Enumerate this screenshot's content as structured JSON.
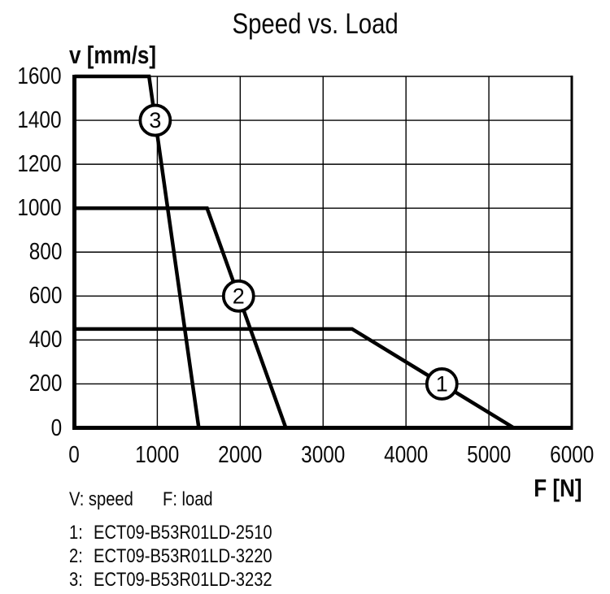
{
  "chart_data": {
    "type": "line",
    "title": "Speed vs. Load",
    "xlabel": "F [N]",
    "ylabel": "v [mm/s]",
    "xlim": [
      0,
      6000
    ],
    "ylim": [
      0,
      1600
    ],
    "x_ticks": [
      0,
      1000,
      2000,
      3000,
      4000,
      5000,
      6000
    ],
    "y_ticks": [
      0,
      200,
      400,
      600,
      800,
      1000,
      1200,
      1400,
      1600
    ],
    "grid": true,
    "background": "#ffffff",
    "line_color": "#000000",
    "axis_color": "#000000",
    "series": [
      {
        "name": "1",
        "model": "ECT09-B53R01LD-2510",
        "points": [
          [
            0,
            450
          ],
          [
            3350,
            450
          ],
          [
            5300,
            0
          ]
        ],
        "marker": [
          4433,
          200
        ]
      },
      {
        "name": "2",
        "model": "ECT09-B53R01LD-3220",
        "points": [
          [
            0,
            1000
          ],
          [
            1600,
            1000
          ],
          [
            2550,
            0
          ]
        ],
        "marker": [
          1980,
          600
        ]
      },
      {
        "name": "3",
        "model": "ECT09-B53R01LD-3232",
        "points": [
          [
            0,
            1600
          ],
          [
            900,
            1600
          ],
          [
            1500,
            0
          ]
        ],
        "marker": [
          975,
          1400
        ]
      }
    ],
    "note": {
      "v": "V: speed",
      "f": "F: load"
    },
    "legend": [
      {
        "num": "1:",
        "label": "ECT09-B53R01LD-2510"
      },
      {
        "num": "2:",
        "label": "ECT09-B53R01LD-3220"
      },
      {
        "num": "3:",
        "label": "ECT09-B53R01LD-3232"
      }
    ]
  }
}
